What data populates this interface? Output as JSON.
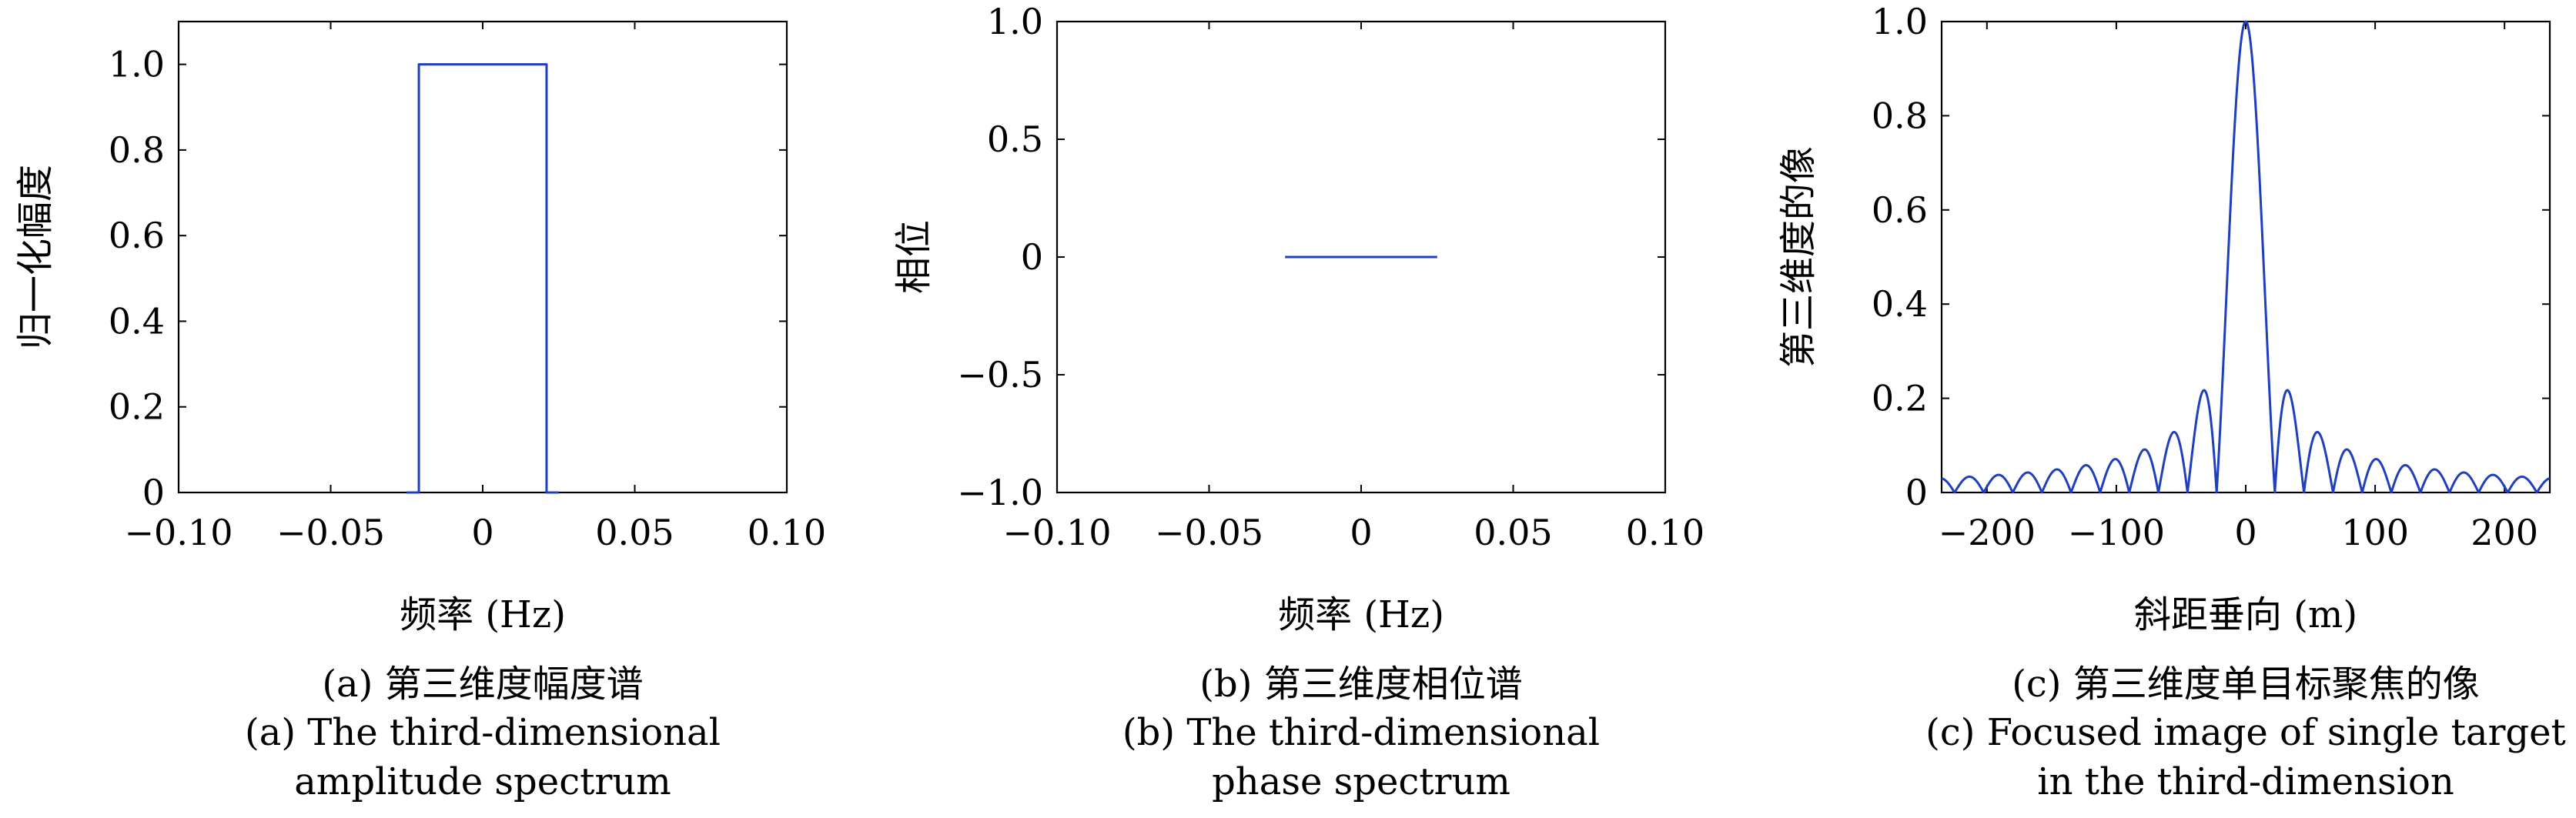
{
  "colors": {
    "line": "#1f3fbf",
    "axis": "#000000",
    "background": "#ffffff"
  },
  "chart_data": [
    {
      "type": "line",
      "xlabel": "频率 (Hz)",
      "ylabel": "归一化幅度",
      "xlim": [
        -0.1,
        0.1
      ],
      "ylim": [
        0,
        1.1
      ],
      "xticks": [
        -0.1,
        -0.05,
        0,
        0.05,
        0.1
      ],
      "xtick_labels": [
        "−0.10",
        "−0.05",
        "0",
        "0.05",
        "0.10"
      ],
      "yticks": [
        0,
        0.2,
        0.4,
        0.6,
        0.8,
        1.0
      ],
      "ytick_labels": [
        "0",
        "0.2",
        "0.4",
        "0.6",
        "0.8",
        "1.0"
      ],
      "grid": false,
      "series": [
        {
          "x": [
            -0.025,
            -0.021,
            -0.021,
            0.021,
            0.021,
            0.025
          ],
          "y": [
            0,
            0,
            1,
            1,
            0,
            0
          ]
        }
      ],
      "caption_cn": "(a) 第三维度幅度谱",
      "caption_en_line1": "(a) The third-dimensional",
      "caption_en_line2": "amplitude spectrum"
    },
    {
      "type": "line",
      "xlabel": "频率 (Hz)",
      "ylabel": "相位",
      "xlim": [
        -0.1,
        0.1
      ],
      "ylim": [
        -1.0,
        1.0
      ],
      "xticks": [
        -0.1,
        -0.05,
        0,
        0.05,
        0.1
      ],
      "xtick_labels": [
        "−0.10",
        "−0.05",
        "0",
        "0.05",
        "0.10"
      ],
      "yticks": [
        -1.0,
        -0.5,
        0,
        0.5,
        1.0
      ],
      "ytick_labels": [
        "−1.0",
        "−0.5",
        "0",
        "0.5",
        "1.0"
      ],
      "grid": false,
      "series": [
        {
          "x": [
            -0.025,
            0.025
          ],
          "y": [
            0,
            0
          ]
        }
      ],
      "caption_cn": "(b) 第三维度相位谱",
      "caption_en_line1": "(b) The third-dimensional",
      "caption_en_line2": "phase spectrum"
    },
    {
      "type": "line",
      "xlabel": "斜距垂向 (m)",
      "ylabel": "第三维度的像",
      "xlim": [
        -235,
        235
      ],
      "ylim": [
        0,
        1.0
      ],
      "xticks": [
        -200,
        -100,
        0,
        100,
        200
      ],
      "xtick_labels": [
        "−200",
        "−100",
        "0",
        "100",
        "200"
      ],
      "yticks": [
        0,
        0.2,
        0.4,
        0.6,
        0.8,
        1.0
      ],
      "ytick_labels": [
        "0",
        "0.2",
        "0.4",
        "0.6",
        "0.8",
        "1.0"
      ],
      "grid": false,
      "series": [
        {
          "function": "abs_sinc",
          "mainlobe_half_width": 22.5,
          "peak": 1.0
        }
      ],
      "caption_cn": "(c) 第三维度单目标聚焦的像",
      "caption_en_line1": "(c) Focused image of single target",
      "caption_en_line2": "in the third-dimension"
    }
  ]
}
